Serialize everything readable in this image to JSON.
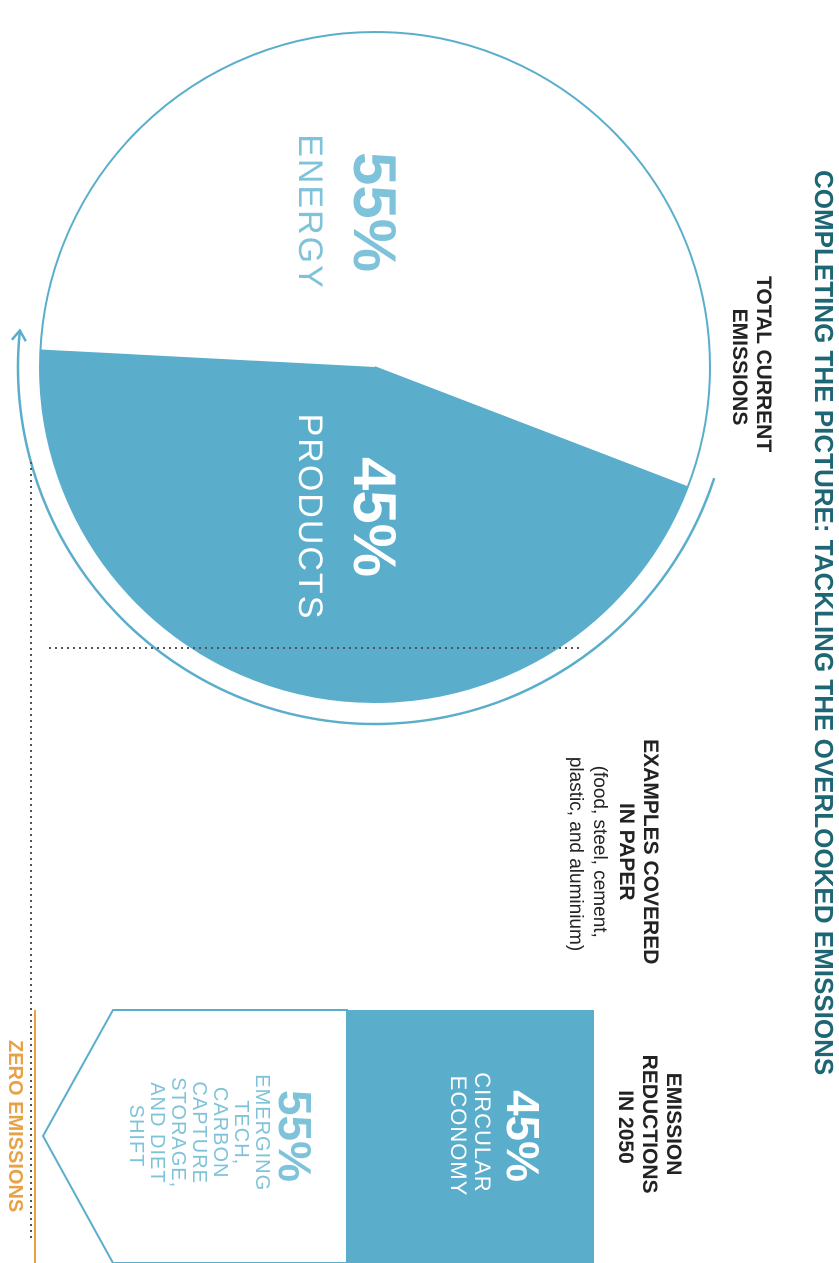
{
  "title": "COMPLETING THE PICTURE: TACKLING THE OVERLOOKED EMISSIONS",
  "pie_label": [
    "TOTAL CURRENT",
    "EMISSIONS"
  ],
  "examples": {
    "heading": [
      "EXAMPLES COVERED",
      "IN PAPER"
    ],
    "detail": [
      "(food, steel, cement,",
      "plastic, and aluminium)"
    ]
  },
  "reductions_label": [
    "EMISSION",
    "REDUCTIONS",
    "IN 2050"
  ],
  "zero_label": "ZERO EMISSIONS",
  "colors": {
    "title": "#1d6674",
    "accent": "#5aaecb",
    "light_text": "#7fc3da",
    "dark_text": "#222222",
    "zero": "#e8a246"
  },
  "chart_data": [
    {
      "type": "pie",
      "title": "",
      "slices": [
        {
          "label": "ENERGY",
          "value": 55,
          "value_label": "55%"
        },
        {
          "label": "PRODUCTS",
          "value": 45,
          "value_label": "45%"
        }
      ]
    },
    {
      "type": "bar",
      "title": "",
      "segments": [
        {
          "label": [
            "CIRCULAR",
            "ECONOMY"
          ],
          "value": 45,
          "value_label": "45%"
        },
        {
          "label": [
            "EMERGING",
            "TECH,",
            "CARBON",
            "CAPTURE",
            "STORAGE,",
            "AND DIET",
            "SHIFT"
          ],
          "value": 55,
          "value_label": "55%"
        }
      ]
    }
  ]
}
